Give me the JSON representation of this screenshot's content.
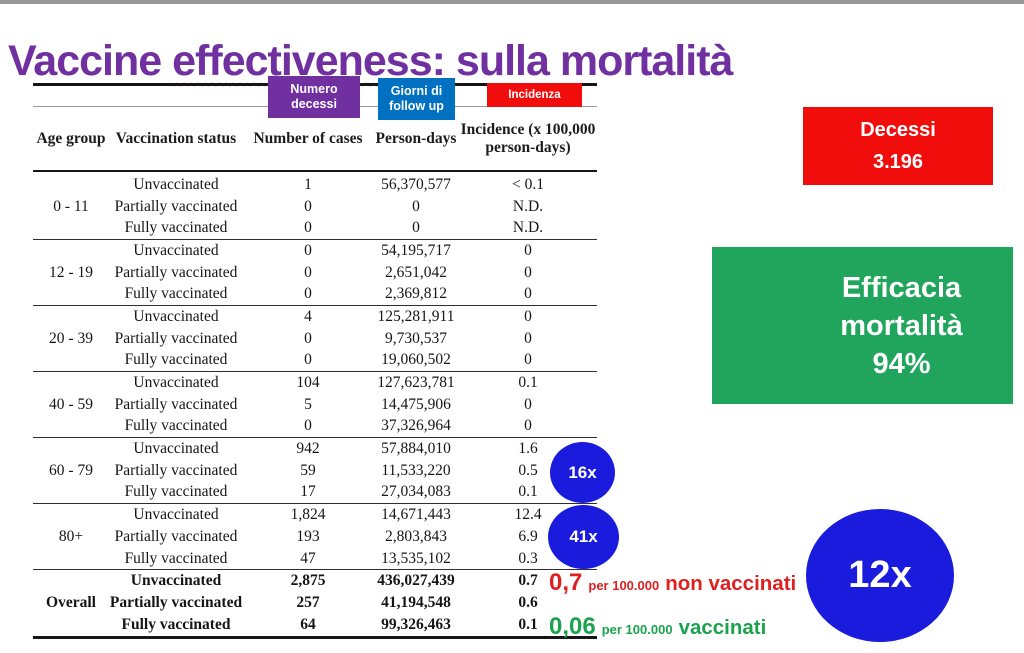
{
  "colors": {
    "purple": "#7030A0",
    "blue": "#0070C0",
    "red": "#F20D0D",
    "green": "#21A45C",
    "circle-blue": "#1B1BDD",
    "annot-red": "#DE2020",
    "annot-green": "#1BA24F"
  },
  "slide": {
    "title": {
      "pre": "Vaccine",
      "underlined": "effectiveness",
      "post": ": sulla mortalità"
    }
  },
  "overlays": {
    "cases_line1": "Numero",
    "cases_line2": "decessi",
    "followup_line1": "Giorni di",
    "followup_line2": "follow up",
    "incidence_label": "Incidenza"
  },
  "table": {
    "headers": {
      "age": "Age group",
      "status": "Vaccination status",
      "cases": "Number of cases",
      "person_days": "Person-days",
      "incidence": "Incidence (x 100,000 person-days)"
    },
    "groups": [
      {
        "age": "0 - 11",
        "bold": false,
        "rows": [
          {
            "status": "Unvaccinated",
            "cases": "1",
            "person_days": "56,370,577",
            "incidence": "< 0.1"
          },
          {
            "status": "Partially vaccinated",
            "cases": "0",
            "person_days": "0",
            "incidence": "N.D."
          },
          {
            "status": "Fully vaccinated",
            "cases": "0",
            "person_days": "0",
            "incidence": "N.D."
          }
        ]
      },
      {
        "age": "12 - 19",
        "bold": false,
        "rows": [
          {
            "status": "Unvaccinated",
            "cases": "0",
            "person_days": "54,195,717",
            "incidence": "0"
          },
          {
            "status": "Partially vaccinated",
            "cases": "0",
            "person_days": "2,651,042",
            "incidence": "0"
          },
          {
            "status": "Fully vaccinated",
            "cases": "0",
            "person_days": "2,369,812",
            "incidence": "0"
          }
        ]
      },
      {
        "age": "20 - 39",
        "bold": false,
        "rows": [
          {
            "status": "Unvaccinated",
            "cases": "4",
            "person_days": "125,281,911",
            "incidence": "0"
          },
          {
            "status": "Partially vaccinated",
            "cases": "0",
            "person_days": "9,730,537",
            "incidence": "0"
          },
          {
            "status": "Fully vaccinated",
            "cases": "0",
            "person_days": "19,060,502",
            "incidence": "0"
          }
        ]
      },
      {
        "age": "40 - 59",
        "bold": false,
        "rows": [
          {
            "status": "Unvaccinated",
            "cases": "104",
            "person_days": "127,623,781",
            "incidence": "0.1"
          },
          {
            "status": "Partially vaccinated",
            "cases": "5",
            "person_days": "14,475,906",
            "incidence": "0"
          },
          {
            "status": "Fully vaccinated",
            "cases": "0",
            "person_days": "37,326,964",
            "incidence": "0"
          }
        ]
      },
      {
        "age": "60 - 79",
        "bold": false,
        "rows": [
          {
            "status": "Unvaccinated",
            "cases": "942",
            "person_days": "57,884,010",
            "incidence": "1.6"
          },
          {
            "status": "Partially vaccinated",
            "cases": "59",
            "person_days": "11,533,220",
            "incidence": "0.5"
          },
          {
            "status": "Fully vaccinated",
            "cases": "17",
            "person_days": "27,034,083",
            "incidence": "0.1"
          }
        ]
      },
      {
        "age": "80+",
        "bold": false,
        "rows": [
          {
            "status": "Unvaccinated",
            "cases": "1,824",
            "person_days": "14,671,443",
            "incidence": "12.4"
          },
          {
            "status": "Partially vaccinated",
            "cases": "193",
            "person_days": "2,803,843",
            "incidence": "6.9"
          },
          {
            "status": "Fully vaccinated",
            "cases": "47",
            "person_days": "13,535,102",
            "incidence": "0.3"
          }
        ]
      },
      {
        "age": "Overall",
        "bold": true,
        "rows": [
          {
            "status": "Unvaccinated",
            "cases": "2,875",
            "person_days": "436,027,439",
            "incidence": "0.7"
          },
          {
            "status": "Partially vaccinated",
            "cases": "257",
            "person_days": "41,194,548",
            "incidence": "0.6"
          },
          {
            "status": "Fully vaccinated",
            "cases": "64",
            "person_days": "99,326,463",
            "incidence": "0.1"
          }
        ]
      }
    ]
  },
  "annotations": {
    "unvaccinated": {
      "value": "0,7",
      "unit": "per 100.000",
      "label": "non vaccinati"
    },
    "vaccinated": {
      "value": "0,06",
      "unit": "per 100.000",
      "label": "vaccinati"
    }
  },
  "badges": {
    "decessi": {
      "title": "Decessi",
      "value": "3.196"
    },
    "efficacia": {
      "line1": "Efficacia",
      "line2": "mortalità",
      "line3": "94%"
    },
    "multipliers": {
      "ratio_60_79": "16x",
      "ratio_80": "41x",
      "ratio_overall": "12x"
    }
  }
}
